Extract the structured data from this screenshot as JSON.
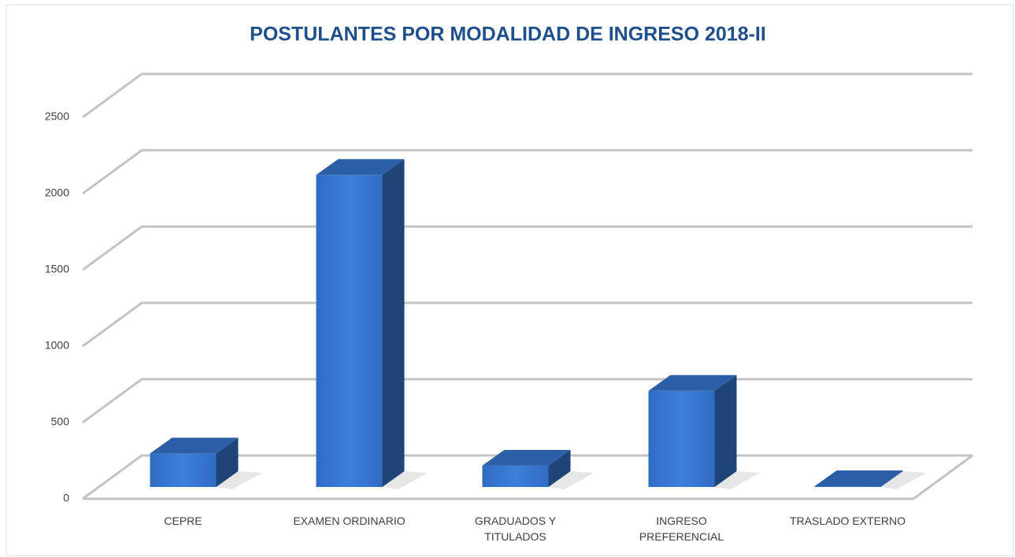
{
  "chart_data": {
    "type": "bar",
    "title": "POSTULANTES POR MODALIDAD DE INGRESO 2018-II",
    "categories": [
      "CEPRE",
      "EXAMEN ORDINARIO",
      "GRADUADOS Y TITULADOS",
      "INGRESO PREFERENCIAL",
      "TRASLADO EXTERNO"
    ],
    "values": [
      220,
      2045,
      140,
      630,
      5
    ],
    "color": "#3a7bd5",
    "ylim": [
      0,
      2500
    ],
    "yticks": [
      0,
      500,
      1000,
      1500,
      2000,
      2500
    ],
    "grid": true
  }
}
